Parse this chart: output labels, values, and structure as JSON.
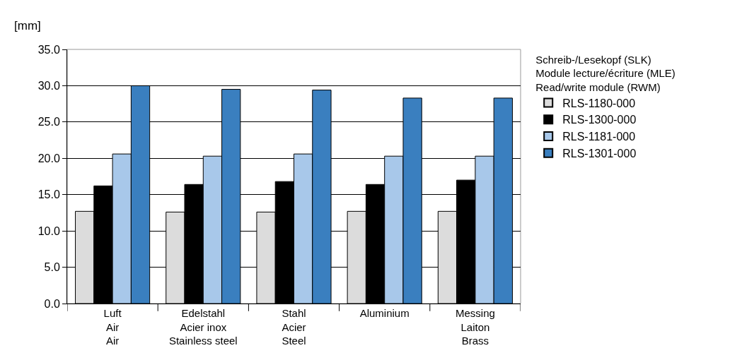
{
  "chart_data": {
    "type": "bar",
    "ylabel": "[mm]",
    "categories": [
      "Luft\nAir\nAir",
      "Edelstahl\nAcier inox\nStainless steel",
      "Stahl\nAcier\nSteel",
      "Aluminium",
      "Messing\nLaiton\nBrass"
    ],
    "series": [
      {
        "name": "RLS-1180-000",
        "color": "#dcdcdc",
        "values": [
          12.7,
          12.6,
          12.6,
          12.7,
          12.7
        ]
      },
      {
        "name": "RLS-1300-000",
        "color": "#000000",
        "values": [
          16.2,
          16.4,
          16.8,
          16.4,
          17.0
        ]
      },
      {
        "name": "RLS-1181-000",
        "color": "#a8c8ea",
        "values": [
          20.6,
          20.3,
          20.6,
          20.3,
          20.3
        ]
      },
      {
        "name": "RLS-1301-000",
        "color": "#3a7fbf",
        "values": [
          30.0,
          29.5,
          29.4,
          28.3,
          28.3
        ]
      }
    ],
    "legend_title": "Schreib-/Lesekopf (SLK)\nModule lecture/écriture (MLE)\nRead/write module (RWM)",
    "ylim": [
      0,
      35
    ],
    "yticks": [
      {
        "value": 0,
        "label": "0.0"
      },
      {
        "value": 5,
        "label": "5.0"
      },
      {
        "value": 10,
        "label": "10.0"
      },
      {
        "value": 15,
        "label": "15.0"
      },
      {
        "value": 20,
        "label": "20.0"
      },
      {
        "value": 25,
        "label": "25.0"
      },
      {
        "value": 30,
        "label": "30.0"
      },
      {
        "value": 35,
        "label": "35.0"
      }
    ],
    "grid": "y",
    "legend": "right"
  }
}
